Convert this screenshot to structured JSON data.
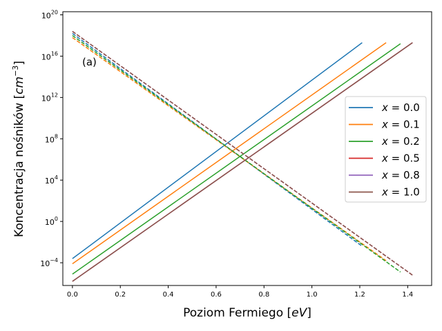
{
  "chart_data": {
    "type": "line",
    "title": "",
    "xlabel_text": "Poziom Fermiego ",
    "xlabel_unit": "eV",
    "ylabel_text": "Koncentracja nośników ",
    "ylabel_unit": "cm",
    "ylabel_exp": "−3",
    "annotation": "(a)",
    "xlim": [
      -0.04,
      1.5
    ],
    "ylim_log10": [
      -6.2,
      20.3
    ],
    "yscale": "log",
    "x_ticks": [
      0.0,
      0.2,
      0.4,
      0.6,
      0.8,
      1.0,
      1.2,
      1.4
    ],
    "x_tick_labels": [
      "0.0",
      "0.2",
      "0.4",
      "0.6",
      "0.8",
      "1.0",
      "1.2",
      "1.4"
    ],
    "y_ticks_log10": [
      -4,
      0,
      4,
      8,
      12,
      16,
      20
    ],
    "y_tick_bases": [
      "10",
      "10",
      "10",
      "10",
      "10",
      "10",
      "10"
    ],
    "y_tick_exps": [
      "−4",
      "0",
      "4",
      "8",
      "12",
      "16",
      "20"
    ],
    "legend_position": "center-right",
    "grid": false,
    "series": [
      {
        "name": "x = 0.0",
        "legend_var": "x",
        "legend_value": "= 0.0",
        "color": "#1f77b4",
        "solid": [
          [
            0.0,
            -3.6
          ],
          [
            1.21,
            17.3
          ]
        ],
        "dashed": [
          [
            0.0,
            18.2
          ],
          [
            1.21,
            -2.4
          ]
        ]
      },
      {
        "name": "x = 0.1",
        "legend_var": "x",
        "legend_value": "= 0.1",
        "color": "#ff7f0e",
        "solid": [
          [
            0.0,
            -4.1
          ],
          [
            1.31,
            17.3
          ]
        ],
        "dashed": [
          [
            0.0,
            17.8
          ],
          [
            1.31,
            -3.8
          ]
        ]
      },
      {
        "name": "x = 0.2",
        "legend_var": "x",
        "legend_value": "= 0.2",
        "color": "#2ca02c",
        "solid": [
          [
            0.0,
            -5.1
          ],
          [
            1.37,
            17.2
          ]
        ],
        "dashed": [
          [
            0.0,
            18.0
          ],
          [
            1.37,
            -4.9
          ]
        ]
      },
      {
        "name": "x = 0.5",
        "legend_var": "x",
        "legend_value": "= 0.5",
        "color": "#d62728",
        "solid": [
          [
            0.0,
            -5.8
          ],
          [
            1.42,
            17.3
          ]
        ],
        "dashed": [
          [
            0.0,
            18.4
          ],
          [
            1.42,
            -5.2
          ]
        ]
      },
      {
        "name": "x = 0.8",
        "legend_var": "x",
        "legend_value": "= 0.8",
        "color": "#9467bd",
        "solid": [
          [
            0.0,
            -5.8
          ],
          [
            1.42,
            17.3
          ]
        ],
        "dashed": [
          [
            0.0,
            18.4
          ],
          [
            1.42,
            -5.2
          ]
        ]
      },
      {
        "name": "x = 1.0",
        "legend_var": "x",
        "legend_value": "= 1.0",
        "color": "#8c564b",
        "solid": [
          [
            0.0,
            -5.8
          ],
          [
            1.42,
            17.3
          ]
        ],
        "dashed": [
          [
            0.0,
            18.4
          ],
          [
            1.42,
            -5.2
          ]
        ]
      }
    ]
  }
}
